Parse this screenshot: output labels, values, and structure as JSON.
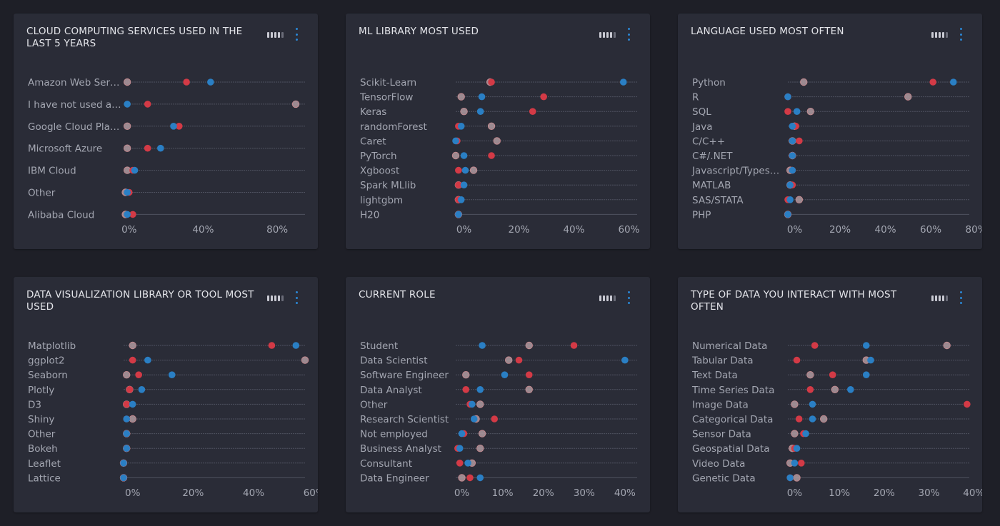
{
  "colors": {
    "red": "#d33a46",
    "blue": "#2a7fc4",
    "gray": "#b09aa0",
    "background": "#1e1f27",
    "card": "#2a2c37"
  },
  "icons": {
    "toolbar": "bar-levels-icon",
    "menu": "kebab-menu-icon"
  },
  "chart_data": [
    {
      "type": "dot-plot",
      "title": "CLOUD COMPUTING SERVICES USED IN THE LAST 5 YEARS",
      "xlim": [
        -3,
        95
      ],
      "xticks": [
        {
          "v": 0,
          "l": "0%"
        },
        {
          "v": 40,
          "l": "40%"
        },
        {
          "v": 80,
          "l": "80%"
        }
      ],
      "categories": [
        "Amazon Web Ser…",
        "I have not used a…",
        "Google Cloud Pla…",
        "Microsoft Azure",
        "IBM Cloud",
        "Other",
        "Alibaba Cloud"
      ],
      "series": [
        {
          "color": "gray",
          "values": [
            -1,
            90,
            -1,
            -1,
            -1,
            -2,
            -2
          ]
        },
        {
          "color": "red",
          "values": [
            31,
            10,
            27,
            10,
            2,
            0,
            2
          ]
        },
        {
          "color": "blue",
          "values": [
            44,
            -1,
            24,
            17,
            3,
            -1,
            -1
          ]
        }
      ]
    },
    {
      "type": "dot-plot",
      "title": "ML LIBRARY MOST USED",
      "xlim": [
        -3,
        63
      ],
      "xticks": [
        {
          "v": 0,
          "l": "0%"
        },
        {
          "v": 20,
          "l": "20%"
        },
        {
          "v": 40,
          "l": "40%"
        },
        {
          "v": 60,
          "l": "60%"
        }
      ],
      "categories": [
        "Scikit-Learn",
        "TensorFlow",
        "Keras",
        "randomForest",
        "Caret",
        "PyTorch",
        "Xgboost",
        "Spark MLlib",
        "lightgbm",
        "H20"
      ],
      "series": [
        {
          "color": "gray",
          "values": [
            9.5,
            -1,
            0,
            10,
            12,
            -3,
            3.5,
            -2,
            -2,
            -2
          ]
        },
        {
          "color": "red",
          "values": [
            10,
            29,
            25,
            -2,
            -2.5,
            10,
            -2,
            -2,
            -2,
            -2
          ]
        },
        {
          "color": "blue",
          "values": [
            58,
            6.5,
            6,
            -1,
            -3,
            0,
            0.5,
            0,
            -1,
            -2
          ]
        }
      ]
    },
    {
      "type": "dot-plot",
      "title": "LANGUAGE USED MOST OFTEN",
      "xlim": [
        -3,
        77
      ],
      "xticks": [
        {
          "v": 0,
          "l": "0%"
        },
        {
          "v": 20,
          "l": "20%"
        },
        {
          "v": 40,
          "l": "40%"
        },
        {
          "v": 60,
          "l": "60%"
        },
        {
          "v": 80,
          "l": "80%"
        }
      ],
      "categories": [
        "Python",
        "R",
        "SQL",
        "Java",
        "C/C++",
        "C#/.NET",
        "Javascript/Types…",
        "MATLAB",
        "SAS/STATA",
        "PHP"
      ],
      "series": [
        {
          "color": "gray",
          "values": [
            4,
            50,
            7,
            0,
            -1,
            -1,
            -2,
            -2,
            2,
            -3
          ]
        },
        {
          "color": "red",
          "values": [
            61,
            -3,
            -3,
            0.5,
            2,
            -1,
            -1,
            -1,
            -3,
            -3
          ]
        },
        {
          "color": "blue",
          "values": [
            70,
            -3,
            1,
            -1,
            -1,
            -1,
            -1,
            -2,
            -2,
            -3
          ]
        }
      ]
    },
    {
      "type": "dot-plot",
      "title": "DATA VISUALIZATION LIBRARY OR TOOL MOST USED",
      "xlim": [
        -3,
        57
      ],
      "xticks": [
        {
          "v": 0,
          "l": "0%"
        },
        {
          "v": 20,
          "l": "20%"
        },
        {
          "v": 40,
          "l": "40%"
        },
        {
          "v": 60,
          "l": "60%"
        }
      ],
      "categories": [
        "Matplotlib",
        "ggplot2",
        "Seaborn",
        "Plotly",
        "D3",
        "Shiny",
        "Other",
        "Bokeh",
        "Leaflet",
        "Lattice"
      ],
      "series": [
        {
          "color": "gray",
          "values": [
            0,
            57,
            -2,
            -1,
            -2,
            0,
            -2,
            -2,
            -3,
            -3
          ]
        },
        {
          "color": "red",
          "values": [
            46,
            0,
            2,
            -1,
            -2,
            -2,
            -2,
            -2,
            -3,
            -3
          ]
        },
        {
          "color": "blue",
          "values": [
            54,
            5,
            13,
            3,
            0,
            -2,
            -2,
            -2,
            -3,
            -3
          ]
        }
      ]
    },
    {
      "type": "dot-plot",
      "title": "CURRENT ROLE",
      "xlim": [
        -1.5,
        43
      ],
      "xticks": [
        {
          "v": 0,
          "l": "0%"
        },
        {
          "v": 10,
          "l": "10%"
        },
        {
          "v": 20,
          "l": "20%"
        },
        {
          "v": 30,
          "l": "30%"
        },
        {
          "v": 40,
          "l": "40%"
        }
      ],
      "categories": [
        "Student",
        "Data Scientist",
        "Software Engineer",
        "Data Analyst",
        "Other",
        "Research Scientist",
        "Not employed",
        "Business Analyst",
        "Consultant",
        "Data Engineer"
      ],
      "series": [
        {
          "color": "gray",
          "values": [
            16.5,
            11.5,
            1,
            16.5,
            4.5,
            3.5,
            5,
            4.5,
            2.5,
            0
          ]
        },
        {
          "color": "red",
          "values": [
            27.5,
            14,
            16.5,
            1,
            2,
            8,
            0.5,
            -1,
            -0.5,
            2
          ]
        },
        {
          "color": "blue",
          "values": [
            5,
            40,
            10.5,
            4.5,
            2.5,
            3,
            0,
            -0.5,
            1.5,
            4.5
          ]
        }
      ]
    },
    {
      "type": "dot-plot",
      "title": "TYPE OF DATA YOU INTERACT WITH MOST OFTEN",
      "xlim": [
        -1.5,
        39
      ],
      "xticks": [
        {
          "v": 0,
          "l": "0%"
        },
        {
          "v": 10,
          "l": "10%"
        },
        {
          "v": 20,
          "l": "20%"
        },
        {
          "v": 30,
          "l": "30%"
        },
        {
          "v": 40,
          "l": "40%"
        }
      ],
      "categories": [
        "Numerical Data",
        "Tabular Data",
        "Text Data",
        "Time Series Data",
        "Image Data",
        "Categorical Data",
        "Sensor Data",
        "Geospatial Data",
        "Video Data",
        "Genetic Data"
      ],
      "series": [
        {
          "color": "gray",
          "values": [
            34,
            16,
            3.5,
            9,
            0,
            6.5,
            0,
            -0.5,
            -1,
            0.5
          ]
        },
        {
          "color": "red",
          "values": [
            4.5,
            0.5,
            8.5,
            3.5,
            38.5,
            1,
            2,
            0,
            1.5,
            -1
          ]
        },
        {
          "color": "blue",
          "values": [
            16,
            17,
            16,
            12.5,
            4,
            4,
            2.5,
            0.5,
            0,
            -1
          ]
        }
      ]
    }
  ]
}
